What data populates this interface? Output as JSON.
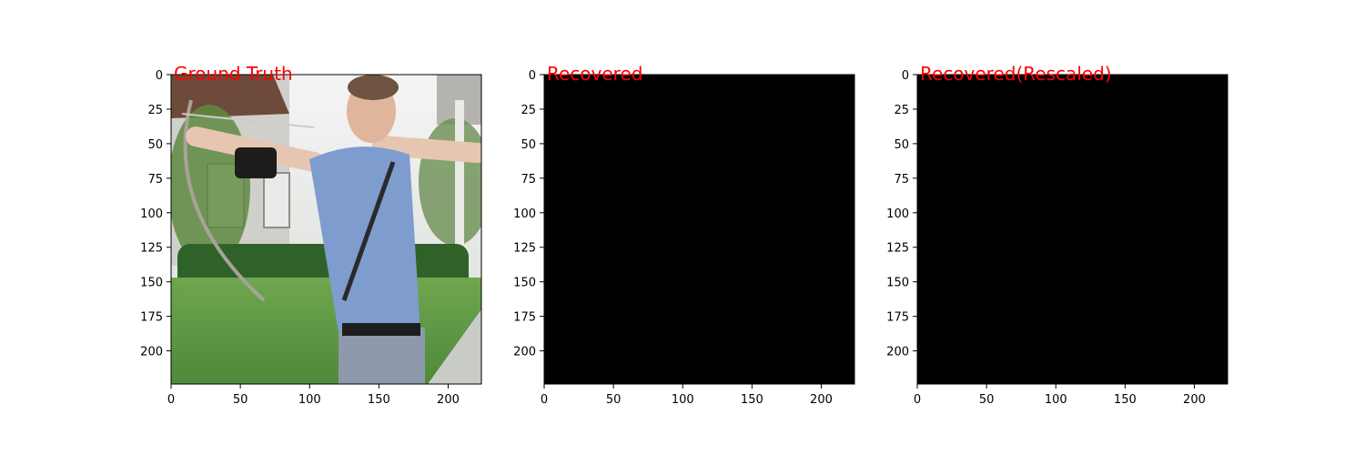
{
  "chart_data": [
    {
      "type": "image",
      "title": "Ground Truth",
      "title_color": "#ff0000",
      "image_extent": [
        224,
        224
      ],
      "content": "photo",
      "xlim": [
        0,
        224
      ],
      "ylim": [
        224,
        0
      ],
      "x_ticks": [
        0,
        50,
        100,
        150,
        200
      ],
      "y_ticks": [
        0,
        25,
        50,
        75,
        100,
        125,
        150,
        175,
        200
      ],
      "grid": false,
      "legend": "none"
    },
    {
      "type": "image",
      "title": "Recovered",
      "title_color": "#ff0000",
      "image_extent": [
        224,
        224
      ],
      "content": "solid",
      "fill_color": "#000000",
      "xlim": [
        0,
        224
      ],
      "ylim": [
        224,
        0
      ],
      "x_ticks": [
        0,
        50,
        100,
        150,
        200
      ],
      "y_ticks": [
        0,
        25,
        50,
        75,
        100,
        125,
        150,
        175,
        200
      ],
      "grid": false,
      "legend": "none"
    },
    {
      "type": "image",
      "title": "Recovered(Rescaled)",
      "title_color": "#ff0000",
      "image_extent": [
        224,
        224
      ],
      "content": "solid",
      "fill_color": "#000000",
      "xlim": [
        0,
        224
      ],
      "ylim": [
        224,
        0
      ],
      "x_ticks": [
        0,
        50,
        100,
        150,
        200
      ],
      "y_ticks": [
        0,
        25,
        50,
        75,
        100,
        125,
        150,
        175,
        200
      ],
      "grid": false,
      "legend": "none"
    }
  ]
}
